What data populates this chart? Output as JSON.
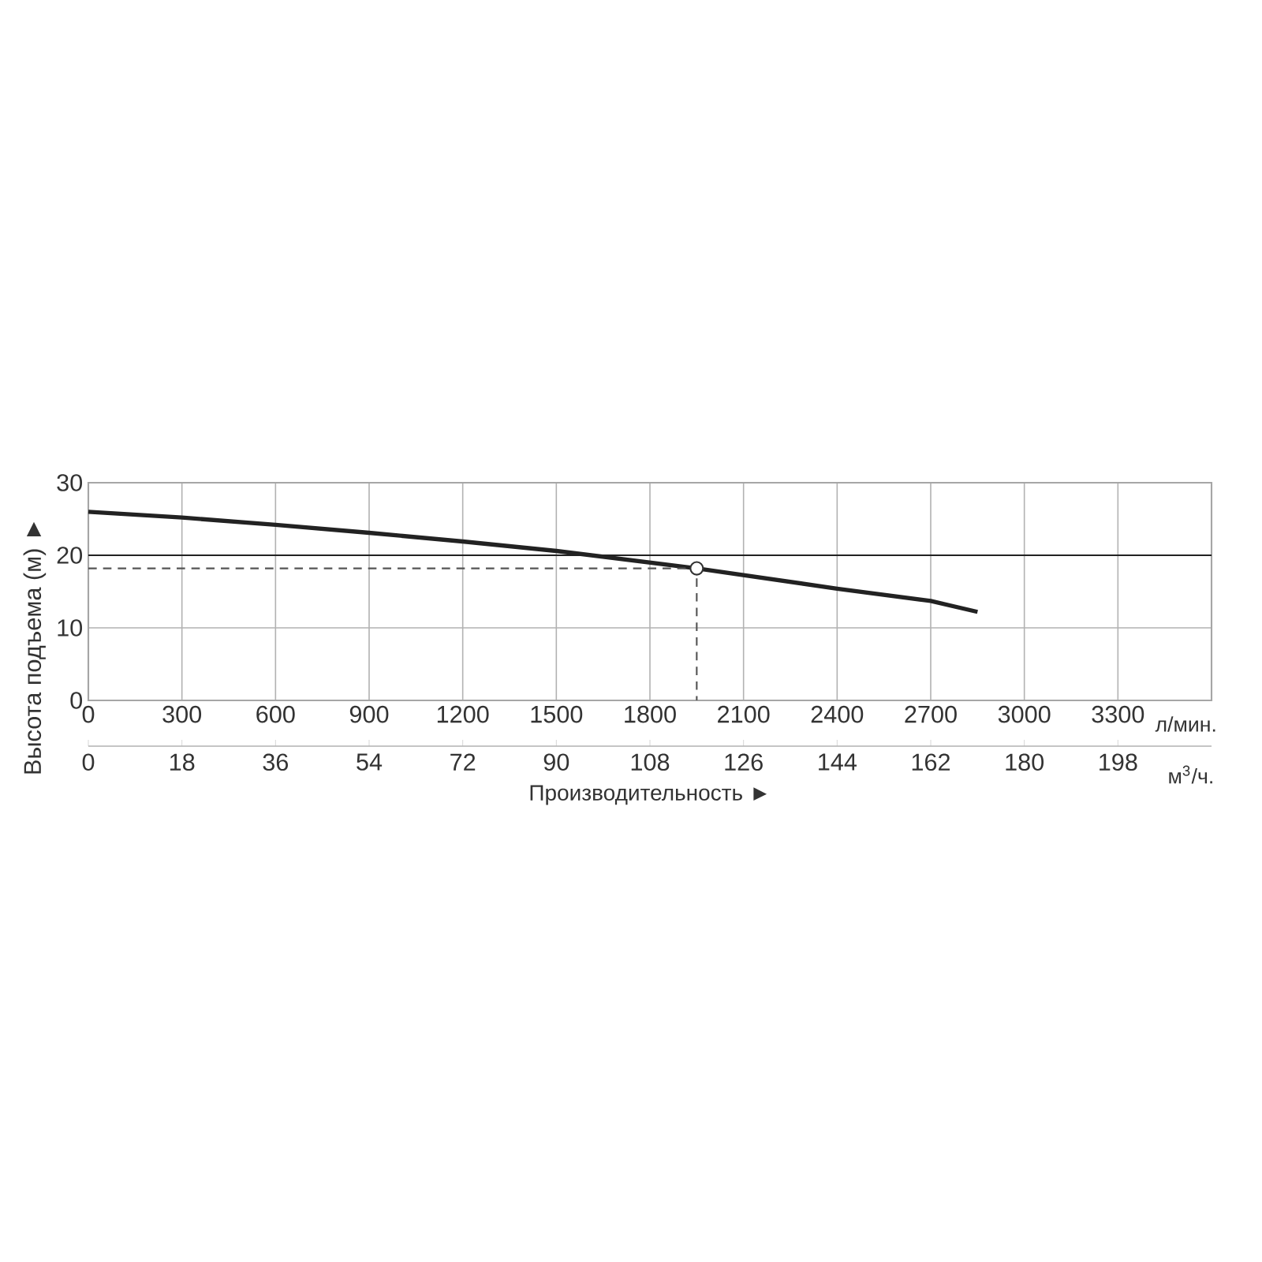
{
  "chart_data": {
    "type": "line",
    "xlabel": "Производительность ►",
    "ylabel": "Высота подъема (м) ►",
    "annotations": [
      "л/мин.",
      "м$^{3}$/ч."
    ],
    "xlim": [
      0,
      3600
    ],
    "xticks": [
      0,
      300,
      600,
      900,
      1200,
      1500,
      1800,
      2100,
      2400,
      2700,
      3000,
      3300
    ],
    "ylim": [
      0,
      30
    ],
    "yticks": [
      0,
      10,
      20,
      30
    ],
    "x2lim": [
      0,
      216
    ],
    "x2ticks": [
      0,
      18,
      36,
      54,
      72,
      90,
      108,
      126,
      144,
      162,
      180,
      198
    ],
    "grid": true,
    "ref_lines": [
      {
        "axis": "y",
        "value": 20,
        "color": "#222222"
      }
    ],
    "series": [
      {
        "color": "#222222",
        "line_style": "solid",
        "marker": "none",
        "x": [
          0,
          300,
          600,
          900,
          1200,
          1500,
          1950,
          2400,
          2700,
          2850
        ],
        "values": [
          26,
          25.2,
          24.2,
          23.1,
          21.9,
          20.6,
          18.2,
          15.4,
          13.7,
          12.2
        ]
      },
      {
        "color": "#555555",
        "line_style": "dashed",
        "marker": "none",
        "x": [
          0,
          1950,
          1950
        ],
        "values": [
          18.2,
          18.2,
          0
        ]
      },
      {
        "type": "scatter",
        "color": "#333333",
        "marker": "circle",
        "x": [
          1950
        ],
        "values": [
          18.2
        ]
      }
    ]
  }
}
